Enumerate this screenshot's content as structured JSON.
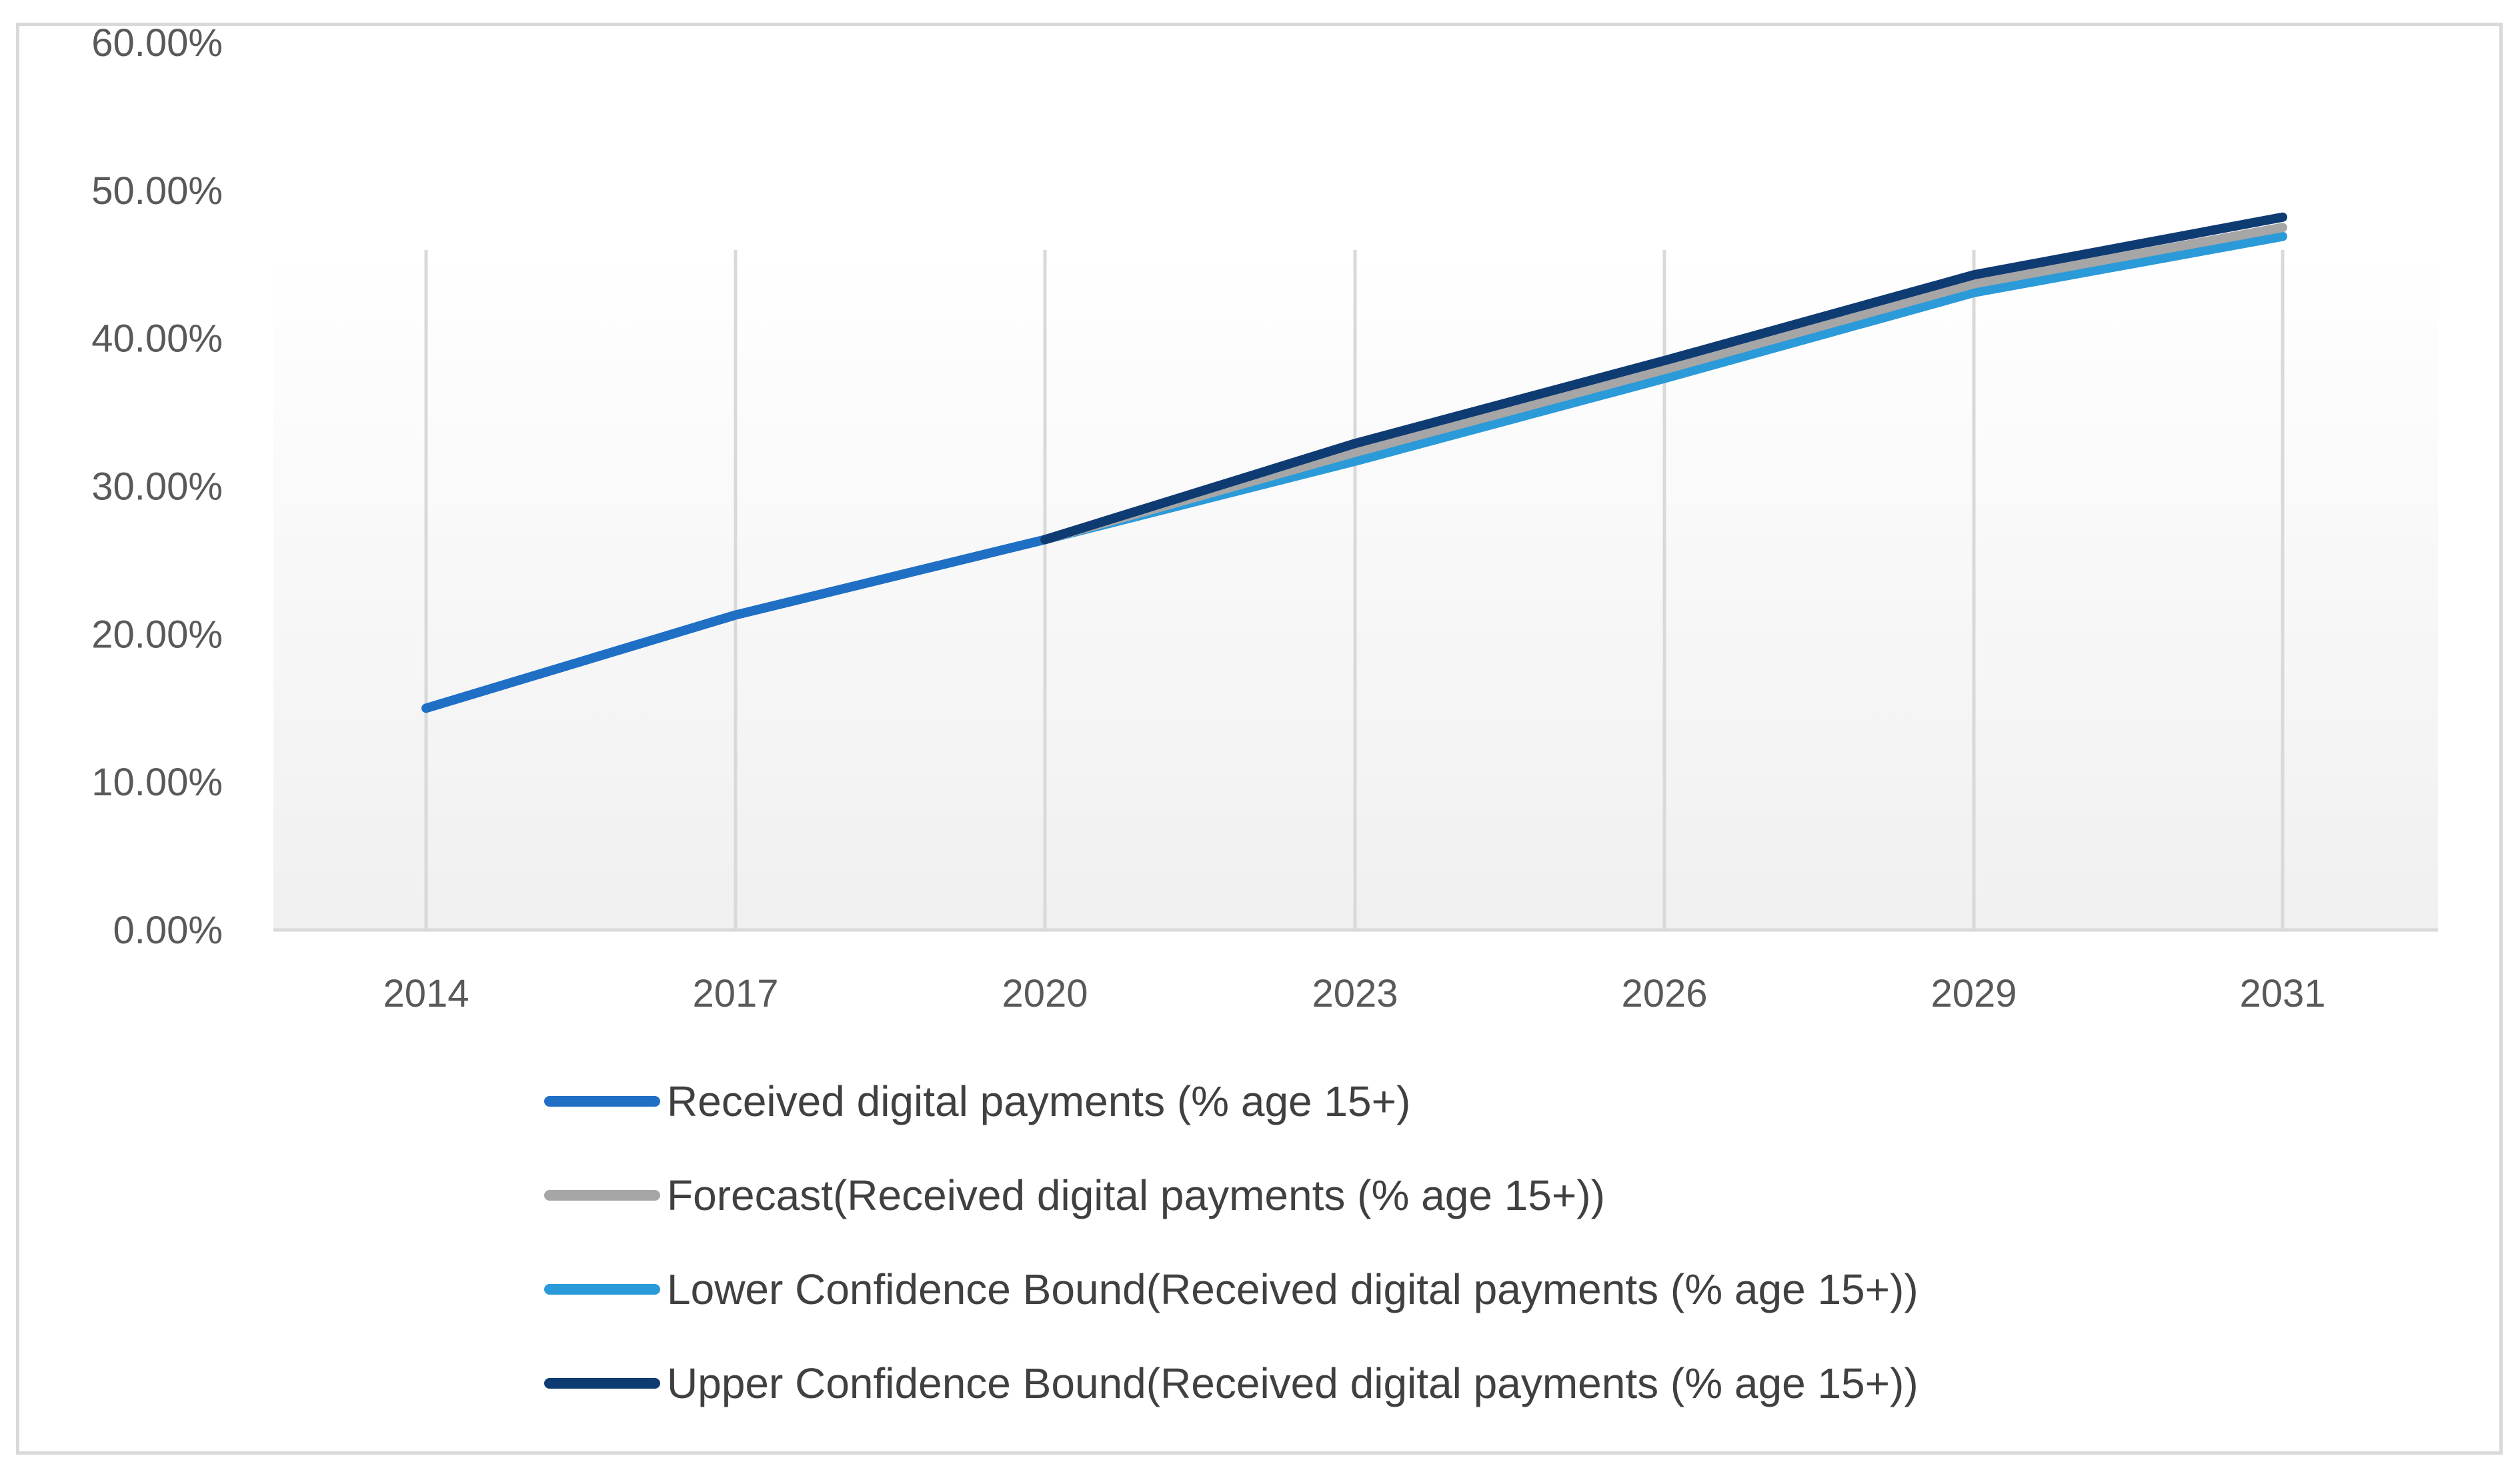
{
  "chart_data": {
    "type": "line",
    "title": "",
    "xlabel": "",
    "ylabel": "",
    "categories": [
      "2014",
      "2017",
      "2020",
      "2023",
      "2026",
      "2029",
      "2031"
    ],
    "ylim": [
      0,
      60
    ],
    "yticks": [
      "0.00%",
      "10.00%",
      "20.00%",
      "30.00%",
      "40.00%",
      "50.00%",
      "60.00%"
    ],
    "grid": "vertical",
    "legend_position": "bottom",
    "series": [
      {
        "name": "Received digital payments (% age 15+)",
        "color": "#1f6fc5",
        "values": [
          15.0,
          21.3,
          26.4,
          null,
          null,
          null,
          null
        ]
      },
      {
        "name": "Forecast(Received digital payments (% age 15+))",
        "color": "#a6a6a6",
        "values": [
          null,
          null,
          26.4,
          32.3,
          37.9,
          43.7,
          47.5
        ]
      },
      {
        "name": "Lower Confidence Bound(Received digital payments (% age 15+))",
        "color": "#2a9ad9",
        "values": [
          null,
          null,
          26.4,
          31.7,
          37.3,
          43.1,
          46.9
        ]
      },
      {
        "name": "Upper Confidence Bound(Received digital payments (% age 15+))",
        "color": "#0f3b73",
        "values": [
          null,
          null,
          26.4,
          32.9,
          38.5,
          44.3,
          48.2
        ]
      }
    ]
  }
}
